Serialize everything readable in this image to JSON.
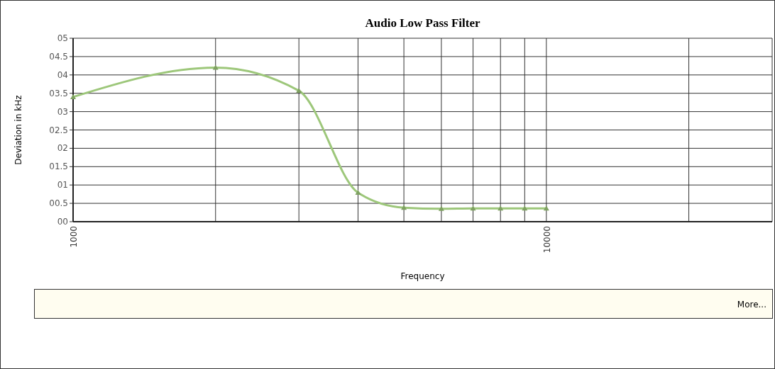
{
  "chart_data": {
    "type": "line",
    "title": "Audio Low Pass Filter",
    "xlabel": "Frequency",
    "ylabel": "Deviation in kHz",
    "x": [
      1000,
      2000,
      3000,
      4000,
      5000,
      6000,
      7000,
      8000,
      9000,
      10000
    ],
    "series": [
      {
        "color": "#9dc77a",
        "values": [
          3.4,
          4.2,
          3.57,
          0.79,
          0.38,
          0.35,
          0.36,
          0.36,
          0.36,
          0.36
        ]
      }
    ],
    "log": "x",
    "xlim": [
      1000,
      30000
    ],
    "xticks": [
      1000,
      {
        "value": 2000,
        "label": null
      },
      {
        "value": 3000,
        "label": null
      },
      {
        "value": 4000,
        "label": null
      },
      {
        "value": 5000,
        "label": null
      },
      {
        "value": 6000,
        "label": null
      },
      {
        "value": 7000,
        "label": null
      },
      {
        "value": 8000,
        "label": null
      },
      {
        "value": 9000,
        "label": null
      },
      10000,
      {
        "value": 20000,
        "label": null
      },
      {
        "value": 30000,
        "label": null
      }
    ],
    "ylim": [
      0,
      5
    ],
    "yticks": [
      {
        "value": 0,
        "label": "00"
      },
      {
        "value": 0.5,
        "label": "00.5"
      },
      {
        "value": 1,
        "label": "01"
      },
      {
        "value": 1.5,
        "label": "01.5"
      },
      {
        "value": 2,
        "label": "02"
      },
      {
        "value": 2.5,
        "label": "02.5"
      },
      {
        "value": 3,
        "label": "03"
      },
      {
        "value": 3.5,
        "label": "03.5"
      },
      {
        "value": 4,
        "label": "04"
      },
      {
        "value": 4.5,
        "label": "04.5"
      },
      {
        "value": 5,
        "label": "05"
      }
    ],
    "grid": true,
    "marker": "triangle",
    "line_style": "solid",
    "annotations": [
      "More..."
    ]
  }
}
